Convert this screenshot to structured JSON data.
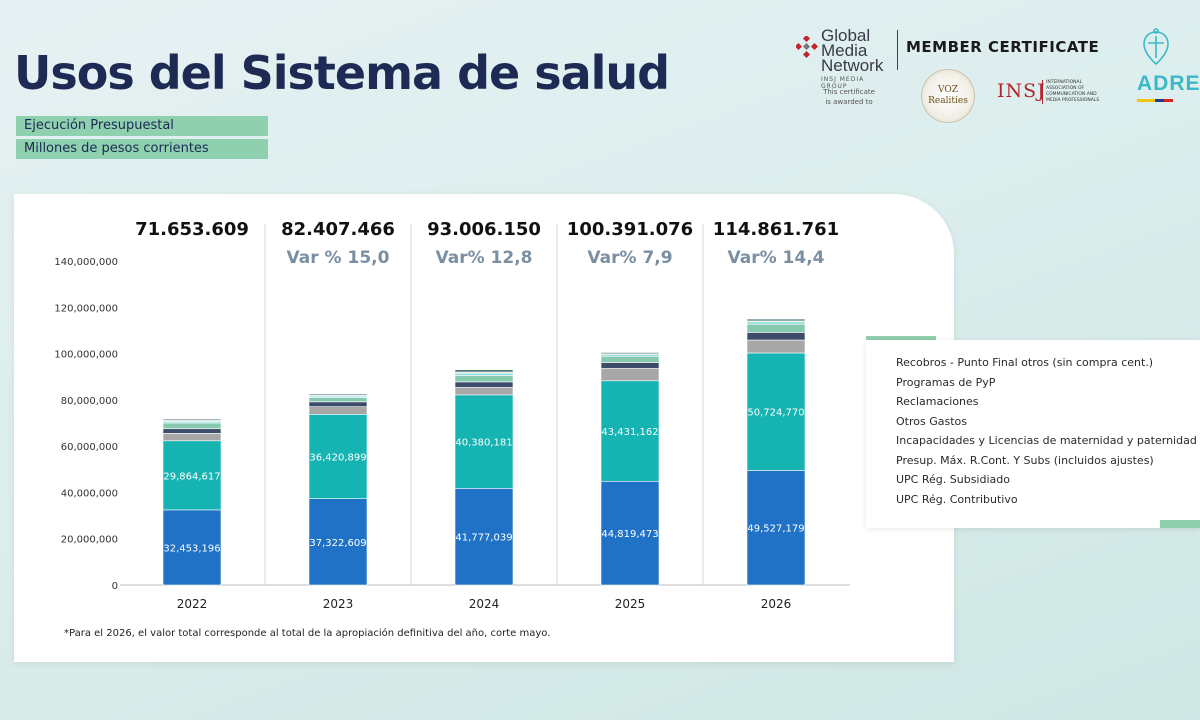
{
  "header": {
    "title": "Usos del Sistema de salud",
    "subtitle1": "Ejecución Presupuestal",
    "subtitle2": "Millones de pesos corrientes"
  },
  "certificate": {
    "brand_line1": "Global",
    "brand_line2": "Media",
    "brand_line3": "Network",
    "brand_small": "INSJ MEDIA GROUP",
    "awarded_line1": "This certificate",
    "awarded_line2": "is awarded to",
    "member_label": "MEMBER CERTIFICATE",
    "voz_line1": "VOZ",
    "voz_line2": "Realities",
    "insj": "INSJ",
    "insj_sub": "International Association of Communication and Media Professionals",
    "adres": "ADRES"
  },
  "footnote": "*Para el 2026, el valor total  corresponde al total de la apropiación definitiva del año, corte mayo.",
  "colors": {
    "contributivo": "#1f72c6",
    "subsidiado": "#15b3b1",
    "presup": "#a7a7a7",
    "incapacidades": "#3d4b6b",
    "otros_gastos": "#86c9ae",
    "reclamaciones": "#8edfe3",
    "pyp": "#d7e79c",
    "recobros": "#2c5a66"
  },
  "chart_data": {
    "type": "bar",
    "stacked": true,
    "categories": [
      "2022",
      "2023",
      "2024",
      "2025",
      "2026"
    ],
    "totals": [
      "71.653.609",
      "82.407.466",
      "93.006.150",
      "100.391.076",
      "114.861.761"
    ],
    "variations": [
      "",
      "Var % 15,0",
      "Var% 12,8",
      "Var% 7,9",
      "Var% 14,4"
    ],
    "ylim": [
      0,
      140000000
    ],
    "yticks": [
      "0",
      "20,000,000",
      "40,000,000",
      "60,000,000",
      "80,000,000",
      "100,000,000",
      "120,000,000",
      "140,000,000"
    ],
    "ytick_values": [
      0,
      20000000,
      40000000,
      60000000,
      80000000,
      100000000,
      120000000,
      140000000
    ],
    "series": [
      {
        "name": "UPC Rég. Contributivo",
        "key": "contributivo",
        "values": [
          32453196,
          37322609,
          41777039,
          44819473,
          49527179
        ],
        "labels": [
          "32,453,196",
          "37,322,609",
          "41,777,039",
          "44,819,473",
          "49,527,179"
        ]
      },
      {
        "name": "UPC Rég. Subsidiado",
        "key": "subsidiado",
        "values": [
          29864617,
          36420899,
          40380181,
          43431162,
          50724770
        ],
        "labels": [
          "29,864,617",
          "36,420,899",
          "40,380,181",
          "43,431,162",
          "50,724,770"
        ]
      },
      {
        "name": "Presup. Máx. R.Cont. Y Subs (incluidos ajustes)",
        "key": "presup",
        "values": [
          3200000,
          3300000,
          3200000,
          5300000,
          5600000
        ]
      },
      {
        "name": "Incapacidades y Licencias de maternidad y paternidad",
        "key": "incapacidades",
        "values": [
          2000000,
          2100000,
          2400000,
          2600000,
          3300000
        ]
      },
      {
        "name": "Otros Gastos",
        "key": "otros_gastos",
        "values": [
          2500000,
          1800000,
          2800000,
          2700000,
          3600000
        ]
      },
      {
        "name": "Reclamaciones",
        "key": "reclamaciones",
        "values": [
          700000,
          700000,
          1000000,
          800000,
          1000000
        ]
      },
      {
        "name": "Programas de PyP",
        "key": "pyp",
        "values": [
          400000,
          300000,
          500000,
          300000,
          400000
        ]
      },
      {
        "name": "Recobros - Punto Final otros (sin compra cent.)",
        "key": "recobros",
        "values": [
          500000,
          500000,
          900000,
          500000,
          700000
        ]
      }
    ],
    "legend_order": [
      "recobros",
      "pyp",
      "reclamaciones",
      "otros_gastos",
      "incapacidades",
      "presup",
      "subsidiado",
      "contributivo"
    ],
    "legend_position": "right",
    "grid": false
  }
}
